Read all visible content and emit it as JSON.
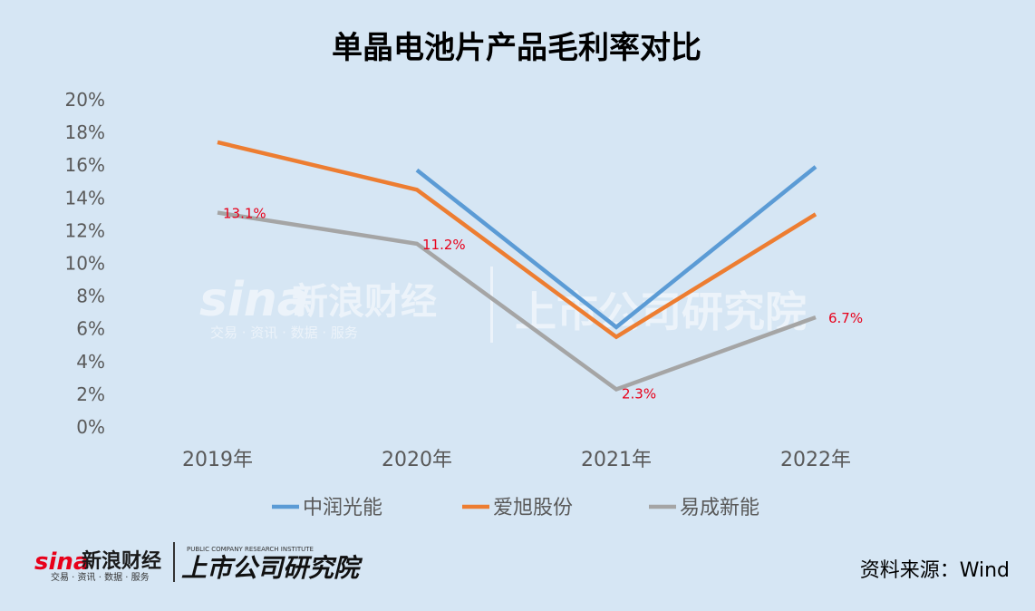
{
  "chart_data": {
    "type": "line",
    "title": "单晶电池片产品毛利率对比",
    "categories": [
      "2019年",
      "2020年",
      "2021年",
      "2022年"
    ],
    "ylim": [
      0,
      20
    ],
    "yticks": [
      "0%",
      "2%",
      "4%",
      "6%",
      "8%",
      "10%",
      "12%",
      "14%",
      "16%",
      "18%",
      "20%"
    ],
    "grid": false,
    "legend_position": "bottom",
    "series": [
      {
        "name": "中润光能",
        "color": "#5b9bd5",
        "values": [
          null,
          15.7,
          6.1,
          15.9
        ],
        "labels": [
          null,
          null,
          null,
          null
        ]
      },
      {
        "name": "爱旭股份",
        "color": "#ed7d31",
        "values": [
          17.4,
          14.5,
          5.5,
          13.0
        ],
        "labels": [
          null,
          null,
          null,
          null
        ]
      },
      {
        "name": "易成新能",
        "color": "#a5a5a5",
        "values": [
          13.1,
          11.2,
          2.3,
          6.7
        ],
        "labels": [
          "13.1%",
          "11.2%",
          "2.3%",
          "6.7%"
        ]
      }
    ]
  },
  "source_text": "资料来源：Wind",
  "watermark": {
    "sina_logo": "sina",
    "brand": "新浪财经",
    "tagline": "交易 · 资讯 · 数据 · 服务",
    "institute": "上市公司研究院",
    "institute_en": "PUBLIC COMPANY RESEARCH INSTITUTE"
  },
  "colors": {
    "background": "#d6e6f4",
    "label_red": "#e8001a"
  }
}
